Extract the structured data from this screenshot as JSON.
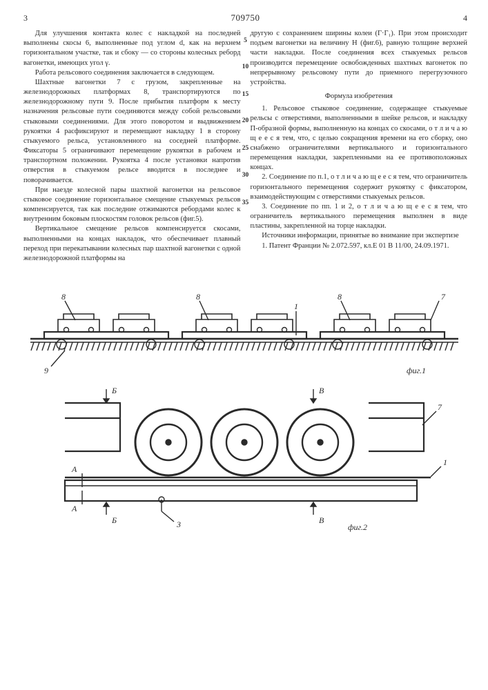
{
  "header": {
    "page_left": "3",
    "doc_number": "709750",
    "page_right": "4"
  },
  "gutter": {
    "marks": [
      "5",
      "10",
      "15",
      "20",
      "25",
      "30",
      "35"
    ],
    "positions": [
      12,
      50,
      90,
      128,
      168,
      207,
      247
    ]
  },
  "left_column": {
    "paragraphs": [
      "Для улучшения контакта колес с накладкой на последней выполнены скосы 6, выполненные под углом d, как на верхнем горизонтальном участке, так и сбоку — со стороны колесных реборд вагонетки, имеющих угол γ.",
      "Работа рельсового соединения заключается в следующем.",
      "Шахтные вагонетки 7 с грузом, закрепленные на железнодорожных платформах 8, транспортируются по железнодорожному пути 9. После прибытия платформ к месту назначения рельсовые пути соединяются между собой рельсовыми стыковыми соединениями. Для этого поворотом и выдвижением рукоятки 4 расфиксируют и перемещают накладку 1 в сторону стыкуемого рельса, установленного на соседней платформе. Фиксаторы 5 ограничивают перемещение рукоятки в рабочем и транспортном положении. Рукоятка 4 после установки напротив отверстия в стыкуемом рельсе вводится в последнее и поворачивается.",
      "При наезде колесной пары шахтной вагонетки на рельсовое стыковое соединение горизонтальное смещение стыкуемых рельсов компенсируется, так как последние отжимаются ребордами колес к внутренним боковым плоскостям головок рельсов (фиг.5).",
      "Вертикальное смещение рельсов компенсируется скосами, выполненными на концах накладок, что обеспечивает плавный переход при перекатывании колесных пар шахтной вагонетки с одной железнодорожной платформы на"
    ]
  },
  "right_column": {
    "lead": "другую с сохранением ширины колеи (Г·Г₁). При этом происходит подъем вагонетки на величину H (фиг.6), равную толщине верхней части накладки. После соединения всех стыкуемых рельсов производится перемещение освобожденных шахтных вагонеток по непрерывному рельсовому пути до приемного перегрузочного устройства.",
    "formula_title": "Формула изобретения",
    "claims": [
      "1. Рельсовое стыковое соединение, содержащее стыкуемые рельсы с отверстиями, выполненными в шейке рельсов, и накладку П-образной формы, выполненную на концах со скосами, о т л и ч а ю щ е е с я  тем, что, с целью сокращения времени на его сборку, оно снабжено ограничителями вертикального и горизонтального перемещения накладки, закрепленными на ее противоположных концах.",
      "2. Соединение по п.1, о т л и ч а ю щ е е с я  тем, что ограничитель горизонтального перемещения содержит рукоятку с фиксатором, взаимодействующим с отверстиями стыкуемых рельсов.",
      "3. Соединение по пп. 1 и 2, о т л и ч а ю щ е е с я  тем, что ограничитель вертикального перемещения выполнен в виде пластины, закрепленной на торце накладки."
    ],
    "sources_title": "Источники информации, принятые во внимание при экспертизе",
    "source_line": "1. Патент Франции № 2.072.597, кл.E 01 B 11/00, 24.09.1971."
  },
  "figures": {
    "fig1": {
      "label": "фиг.1",
      "ref_numbers": [
        "8",
        "8",
        "1",
        "8",
        "7",
        "9"
      ],
      "stroke": "#2a2a2a",
      "fill": "#ffffff",
      "hatch": "#2a2a2a"
    },
    "fig2": {
      "label": "фиг.2",
      "section_marks_top": [
        "Б",
        "В"
      ],
      "section_marks_bottom": [
        "Б",
        "В"
      ],
      "letter_A": "А",
      "ref_numbers": [
        "7",
        "1",
        "3"
      ],
      "stroke": "#2a2a2a",
      "fill": "#ffffff"
    },
    "line_width_thin": 1.2,
    "line_width_thick": 2.5,
    "ground_hatch_spacing": 8
  }
}
